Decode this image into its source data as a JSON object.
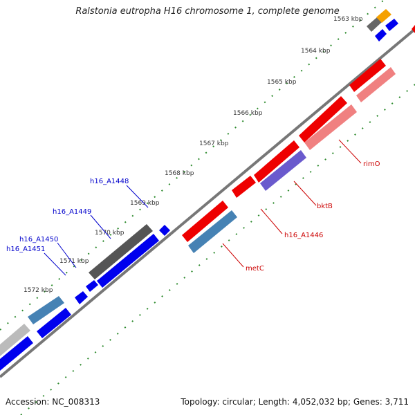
{
  "title": "Ralstonia eutropha H16 chromosome 1, complete genome",
  "footer": {
    "accession": "Accession: NC_008313",
    "topology": "Topology: circular; Length: 4,052,032 bp; Genes: 3,711"
  },
  "colors": {
    "backbone": "#888888",
    "tick": "#2e8b2e",
    "gene_label_blue": "#0000cc",
    "gene_label_red": "#cc0000"
  },
  "kbp_labels": [
    "1563 kbp",
    "1564 kbp",
    "1565 kbp",
    "1566 kbp",
    "1567 kbp",
    "1568 kbp",
    "1569 kbp",
    "1570 kbp",
    "1571 kbp",
    "1572 kbp"
  ],
  "gene_labels": [
    {
      "text": "h16_A1448",
      "color": "#0000cc"
    },
    {
      "text": "h16_A1449",
      "color": "#0000cc"
    },
    {
      "text": "h16_A1450",
      "color": "#0000cc"
    },
    {
      "text": "h16_A1451",
      "color": "#0000cc"
    },
    {
      "text": "rimO",
      "color": "#cc0000"
    },
    {
      "text": "bktB",
      "color": "#cc0000"
    },
    {
      "text": "h16_A1446",
      "color": "#cc0000"
    },
    {
      "text": "metC",
      "color": "#cc0000"
    }
  ]
}
